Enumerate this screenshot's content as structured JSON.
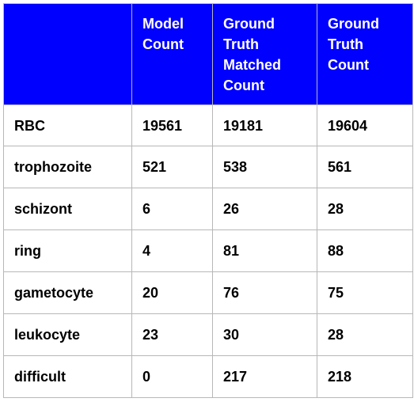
{
  "table": {
    "header_color": "#0000ff",
    "columns": [
      "",
      "Model Count",
      "Ground Truth Matched Count",
      "Ground Truth Count"
    ],
    "rows": [
      [
        "RBC",
        "19561",
        "19181",
        "19604"
      ],
      [
        "trophozoite",
        "521",
        "538",
        "561"
      ],
      [
        "schizont",
        "6",
        "26",
        "28"
      ],
      [
        "ring",
        "4",
        "81",
        "88"
      ],
      [
        "gametocyte",
        "20",
        "76",
        "75"
      ],
      [
        "leukocyte",
        "23",
        "30",
        "28"
      ],
      [
        "difficult",
        "0",
        "217",
        "218"
      ]
    ]
  }
}
